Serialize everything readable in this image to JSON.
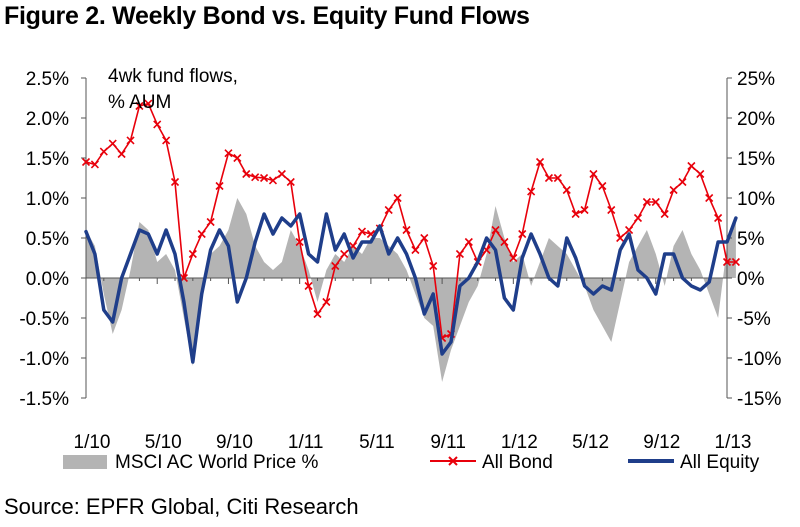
{
  "title": "Figure 2. Weekly Bond vs. Equity Fund Flows",
  "source": "Source: EPFR Global, Citi Research",
  "chart_data": {
    "type": "line",
    "annotation": [
      "4wk fund flows,",
      "% AUM"
    ],
    "x_tick_labels": [
      "1/10",
      "5/10",
      "9/10",
      "1/11",
      "5/11",
      "9/11",
      "1/12",
      "5/12",
      "9/12",
      "1/13"
    ],
    "left_axis": {
      "ylim": [
        -1.5,
        2.5
      ],
      "tick_values": [
        -1.5,
        -1.0,
        -0.5,
        0.0,
        0.5,
        1.0,
        1.5,
        2.0,
        2.5
      ],
      "tick_labels": [
        "-1.5%",
        "-1.0%",
        "-0.5%",
        "0.0%",
        "0.5%",
        "1.0%",
        "1.5%",
        "2.0%",
        "2.5%"
      ]
    },
    "right_axis": {
      "ylim": [
        -15,
        25
      ],
      "tick_values": [
        -15,
        -10,
        -5,
        0,
        5,
        10,
        15,
        20,
        25
      ],
      "tick_labels": [
        "-15%",
        "-10%",
        "-5%",
        "0%",
        "5%",
        "10%",
        "15%",
        "20%",
        "25%"
      ]
    },
    "x_months": [
      0,
      0.5,
      1,
      1.5,
      2,
      2.5,
      3,
      3.5,
      4,
      4.5,
      5,
      5.5,
      6,
      6.5,
      7,
      7.5,
      8,
      8.5,
      9,
      9.5,
      10,
      10.5,
      11,
      11.5,
      12,
      12.5,
      13,
      13.5,
      14,
      14.5,
      15,
      15.5,
      16,
      16.5,
      17,
      17.5,
      18,
      18.5,
      19,
      19.5,
      20,
      20.5,
      21,
      21.5,
      22,
      22.5,
      23,
      23.5,
      24,
      24.5,
      25,
      25.5,
      26,
      26.5,
      27,
      27.5,
      28,
      28.5,
      29,
      29.5,
      30,
      30.5,
      31,
      31.5,
      32,
      32.5,
      33,
      33.5,
      34,
      34.5,
      35,
      35.5,
      36,
      36.5
    ],
    "series": [
      {
        "name": "MSCI AC World Price %",
        "type": "area",
        "axis": "right",
        "color": "#b4b4b4",
        "values": [
          6,
          4,
          -2,
          -7,
          -4,
          1,
          7,
          6,
          2,
          3,
          1,
          -5,
          -11,
          -3,
          3,
          4,
          6,
          10,
          8,
          4,
          2,
          1,
          2,
          6,
          4,
          1,
          -3,
          1,
          3,
          2,
          4,
          3,
          5,
          5,
          4,
          3,
          1,
          -2,
          -5,
          -6,
          -13,
          -9,
          -6,
          -3,
          -1,
          3,
          9,
          5,
          2,
          3,
          -1,
          2,
          5,
          4,
          3,
          1,
          -1,
          -4,
          -6,
          -8,
          -3,
          2,
          4,
          6,
          3,
          -1,
          4,
          6,
          3,
          1,
          -2,
          -5,
          4,
          7
        ]
      },
      {
        "name": "All Bond",
        "type": "line",
        "axis": "left",
        "color": "#e8000b",
        "marker": "x",
        "values": [
          1.45,
          1.42,
          1.58,
          1.68,
          1.55,
          1.72,
          2.15,
          2.18,
          1.92,
          1.72,
          1.2,
          0.0,
          0.3,
          0.55,
          0.7,
          1.15,
          1.56,
          1.5,
          1.3,
          1.26,
          1.25,
          1.22,
          1.3,
          1.2,
          0.45,
          -0.1,
          -0.45,
          -0.3,
          0.15,
          0.3,
          0.4,
          0.58,
          0.55,
          0.62,
          0.85,
          1.0,
          0.6,
          0.35,
          0.5,
          0.15,
          -0.75,
          -0.7,
          0.3,
          0.45,
          0.2,
          0.35,
          0.6,
          0.45,
          0.25,
          0.55,
          1.08,
          1.45,
          1.25,
          1.25,
          1.1,
          0.8,
          0.85,
          1.3,
          1.15,
          0.85,
          0.5,
          0.6,
          0.75,
          0.95,
          0.95,
          0.8,
          1.1,
          1.2,
          1.4,
          1.3,
          1.0,
          0.75,
          0.2,
          0.2
        ]
      },
      {
        "name": "All Equity",
        "type": "line",
        "axis": "left",
        "color": "#1f3e8a",
        "values": [
          0.58,
          0.3,
          -0.4,
          -0.55,
          0.0,
          0.3,
          0.6,
          0.55,
          0.3,
          0.6,
          0.3,
          -0.3,
          -1.05,
          -0.2,
          0.35,
          0.6,
          0.4,
          -0.3,
          0.0,
          0.45,
          0.8,
          0.55,
          0.75,
          0.65,
          0.8,
          0.3,
          0.2,
          0.8,
          0.35,
          0.55,
          0.25,
          0.45,
          0.45,
          0.65,
          0.3,
          0.5,
          0.3,
          0.0,
          -0.45,
          -0.2,
          -0.95,
          -0.8,
          -0.1,
          0.0,
          0.2,
          0.5,
          0.35,
          -0.25,
          -0.4,
          0.25,
          0.55,
          0.3,
          0.0,
          -0.1,
          0.5,
          0.25,
          -0.1,
          -0.2,
          -0.1,
          -0.15,
          0.35,
          0.55,
          0.1,
          0.0,
          -0.2,
          0.3,
          0.3,
          0.0,
          -0.1,
          -0.15,
          -0.05,
          0.45,
          0.45,
          0.75
        ]
      }
    ],
    "legend_position": "bottom",
    "grid": false
  }
}
